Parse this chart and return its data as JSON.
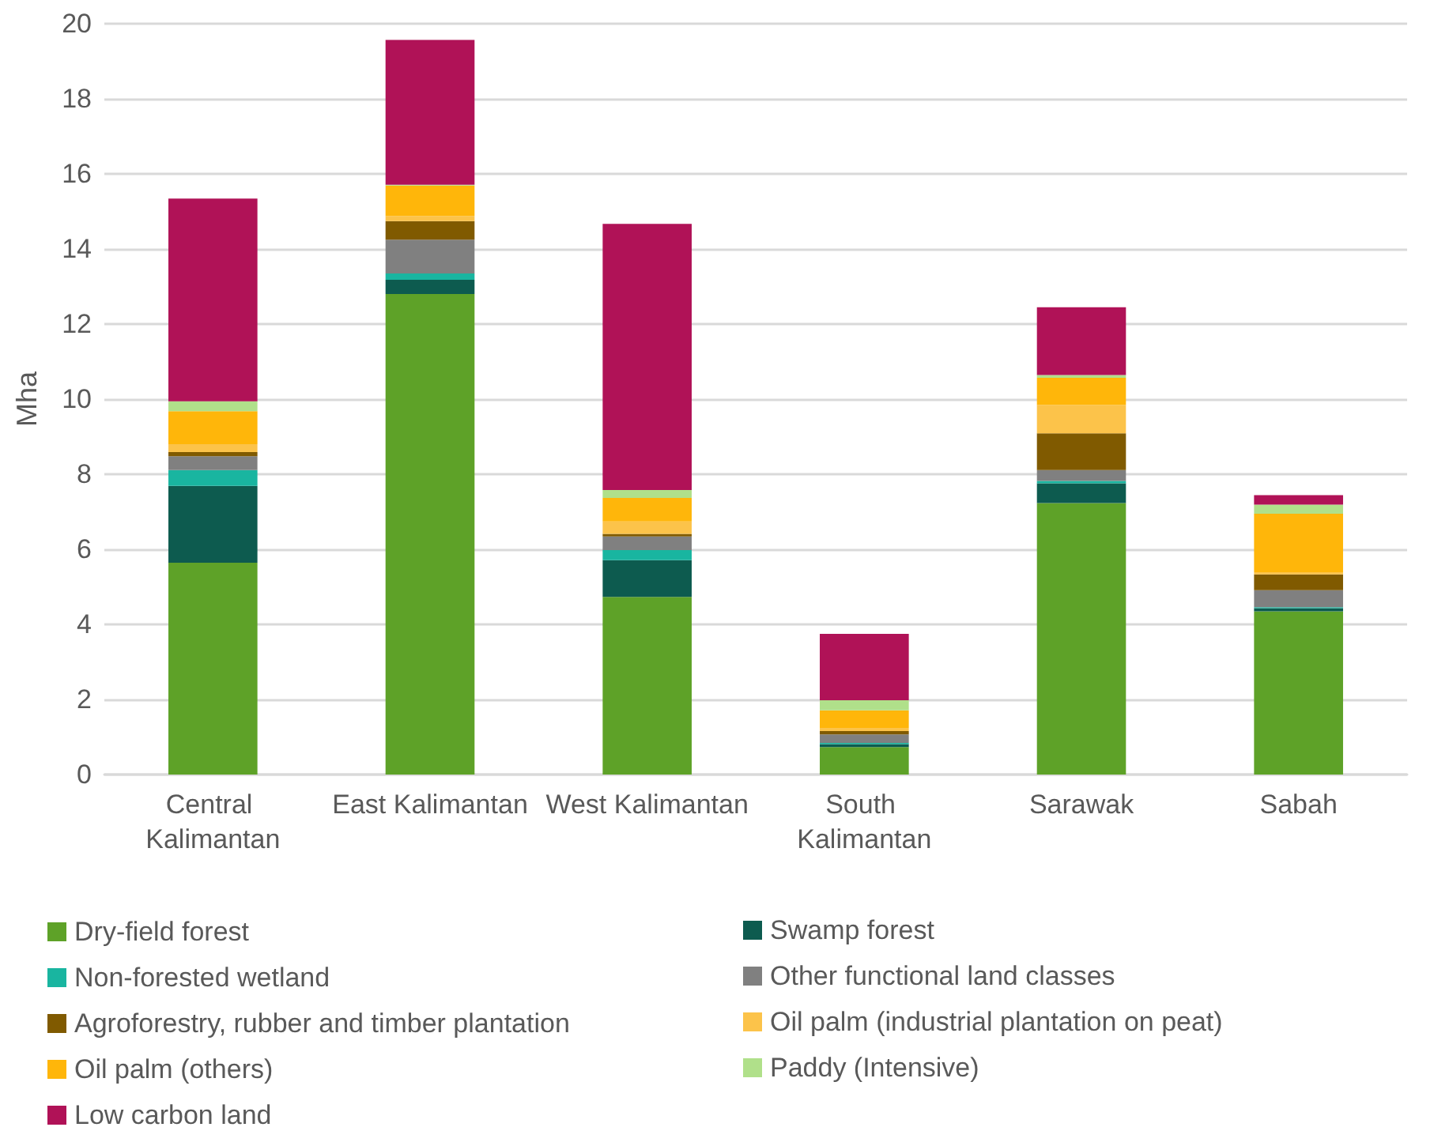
{
  "chart_data": {
    "type": "bar",
    "stacked": true,
    "ylabel": "Mha",
    "categories": [
      "Central Kalimantan",
      "East Kalimantan",
      "West Kalimantan",
      "South Kalimantan",
      "Sarawak",
      "Sabah"
    ],
    "series": [
      {
        "name": "Dry-field forest",
        "color": "#5ea228",
        "values": [
          5.64,
          12.8,
          4.73,
          0.73,
          7.23,
          4.35
        ]
      },
      {
        "name": "Swamp forest",
        "color": "#0d5b4f",
        "values": [
          2.05,
          0.38,
          0.98,
          0.08,
          0.53,
          0.08
        ]
      },
      {
        "name": "Non-forested wetland",
        "color": "#19b5a0",
        "values": [
          0.42,
          0.17,
          0.27,
          0.03,
          0.06,
          0.03
        ]
      },
      {
        "name": "Other functional land classes",
        "color": "#808080",
        "values": [
          0.37,
          0.9,
          0.36,
          0.23,
          0.29,
          0.45
        ]
      },
      {
        "name": "Agroforestry, rubber and timber plantation",
        "color": "#805a00",
        "values": [
          0.11,
          0.49,
          0.07,
          0.09,
          0.98,
          0.42
        ]
      },
      {
        "name": "Oil palm (industrial plantation on peat)",
        "color": "#fcc34a",
        "values": [
          0.21,
          0.14,
          0.33,
          0.08,
          0.76,
          0.06
        ]
      },
      {
        "name": "Oil palm (others)",
        "color": "#ffb60a",
        "values": [
          0.88,
          0.81,
          0.63,
          0.47,
          0.72,
          1.56
        ]
      },
      {
        "name": "Paddy (Intensive)",
        "color": "#b0e08a",
        "values": [
          0.26,
          0.02,
          0.21,
          0.27,
          0.07,
          0.24
        ]
      },
      {
        "name": "Low carbon land",
        "color": "#b01257",
        "values": [
          5.4,
          3.86,
          7.09,
          1.77,
          1.81,
          0.25
        ]
      }
    ],
    "ylim": [
      0,
      20
    ],
    "yticks": [
      0,
      2,
      4,
      6,
      8,
      10,
      12,
      14,
      16,
      18,
      20
    ],
    "grid": "y",
    "legend": "bottom"
  }
}
